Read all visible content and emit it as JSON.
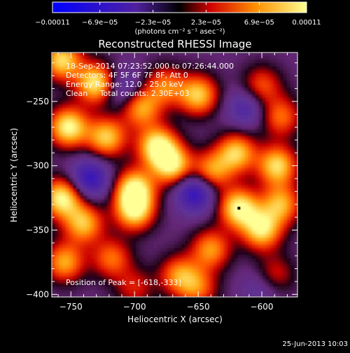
{
  "chart_data": {
    "type": "heatmap",
    "title": "Reconstructed RHESSI Image",
    "xlabel": "Heliocentric X (arcsec)",
    "ylabel": "Heliocentric Y (arcsec)",
    "xlim": [
      -765,
      -572
    ],
    "ylim": [
      -402,
      -212
    ],
    "x_ticks": [
      -750,
      -700,
      -650,
      -600
    ],
    "x_tick_labels": [
      "−750",
      "−700",
      "−650",
      "−600"
    ],
    "y_ticks": [
      -250,
      -300,
      -350,
      -400
    ],
    "y_tick_labels": [
      "−250",
      "−300",
      "−350",
      "−400"
    ],
    "colorbar": {
      "min": -0.00011,
      "max": 0.00011,
      "tick_values": [
        -0.00011,
        -6.9e-05,
        -2.3e-05,
        2.3e-05,
        6.9e-05,
        0.00011
      ],
      "tick_labels": [
        "−0.00011",
        "−6.9e−05",
        "−2.3e−05",
        "2.3e−05",
        "6.9e−05",
        "0.00011"
      ],
      "units": "(photons cm⁻² s⁻¹ asec⁻²)"
    },
    "annotations": [
      "18-Sep-2014 07:23:52.000 to 07:26:44.000",
      "Detectors: 4F 5F 6F 7F 8F, Att 0",
      "Energy Range: 12.0 - 25.0 keV",
      "Clean     Total counts: 2.30E+03"
    ],
    "peak_label": "Position of Peak = [-618,-333]",
    "peak_position": [
      -618,
      -333
    ],
    "footer": "25-Jun-2013 10:03",
    "sources": [
      {
        "x": -757,
        "y": -218,
        "v": 0.9
      },
      {
        "x": -730,
        "y": -236,
        "v": 1.0
      },
      {
        "x": -752,
        "y": -270,
        "v": 1.0
      },
      {
        "x": -722,
        "y": -278,
        "v": 0.85
      },
      {
        "x": -695,
        "y": -255,
        "v": 0.75
      },
      {
        "x": -676,
        "y": -238,
        "v": 0.6
      },
      {
        "x": -650,
        "y": -245,
        "v": 0.85
      },
      {
        "x": -600,
        "y": -238,
        "v": 0.55
      },
      {
        "x": -585,
        "y": -262,
        "v": 0.6
      },
      {
        "x": -682,
        "y": -285,
        "v": 1.0
      },
      {
        "x": -670,
        "y": -300,
        "v": 0.9
      },
      {
        "x": -620,
        "y": -290,
        "v": 0.85
      },
      {
        "x": -640,
        "y": -305,
        "v": 0.75
      },
      {
        "x": -588,
        "y": -300,
        "v": 0.9
      },
      {
        "x": -757,
        "y": -325,
        "v": 1.0
      },
      {
        "x": -740,
        "y": -345,
        "v": 0.8
      },
      {
        "x": -700,
        "y": -318,
        "v": 0.95
      },
      {
        "x": -700,
        "y": -335,
        "v": 0.9
      },
      {
        "x": -618,
        "y": -333,
        "v": 1.0
      },
      {
        "x": -600,
        "y": -350,
        "v": 0.9
      },
      {
        "x": -585,
        "y": -330,
        "v": 0.75
      },
      {
        "x": -640,
        "y": -365,
        "v": 0.7
      },
      {
        "x": -755,
        "y": -375,
        "v": 0.75
      },
      {
        "x": -718,
        "y": -372,
        "v": 0.6
      },
      {
        "x": -665,
        "y": -385,
        "v": 0.65
      },
      {
        "x": -650,
        "y": -395,
        "v": 0.55
      },
      {
        "x": -590,
        "y": -385,
        "v": 0.45
      },
      {
        "x": -700,
        "y": -395,
        "v": 0.4
      },
      {
        "x": -735,
        "y": -310,
        "v": -0.7
      },
      {
        "x": -652,
        "y": -320,
        "v": -0.8
      },
      {
        "x": -710,
        "y": -240,
        "v": -0.45
      },
      {
        "x": -612,
        "y": -255,
        "v": -0.45
      },
      {
        "x": -600,
        "y": -395,
        "v": -0.3
      }
    ]
  }
}
